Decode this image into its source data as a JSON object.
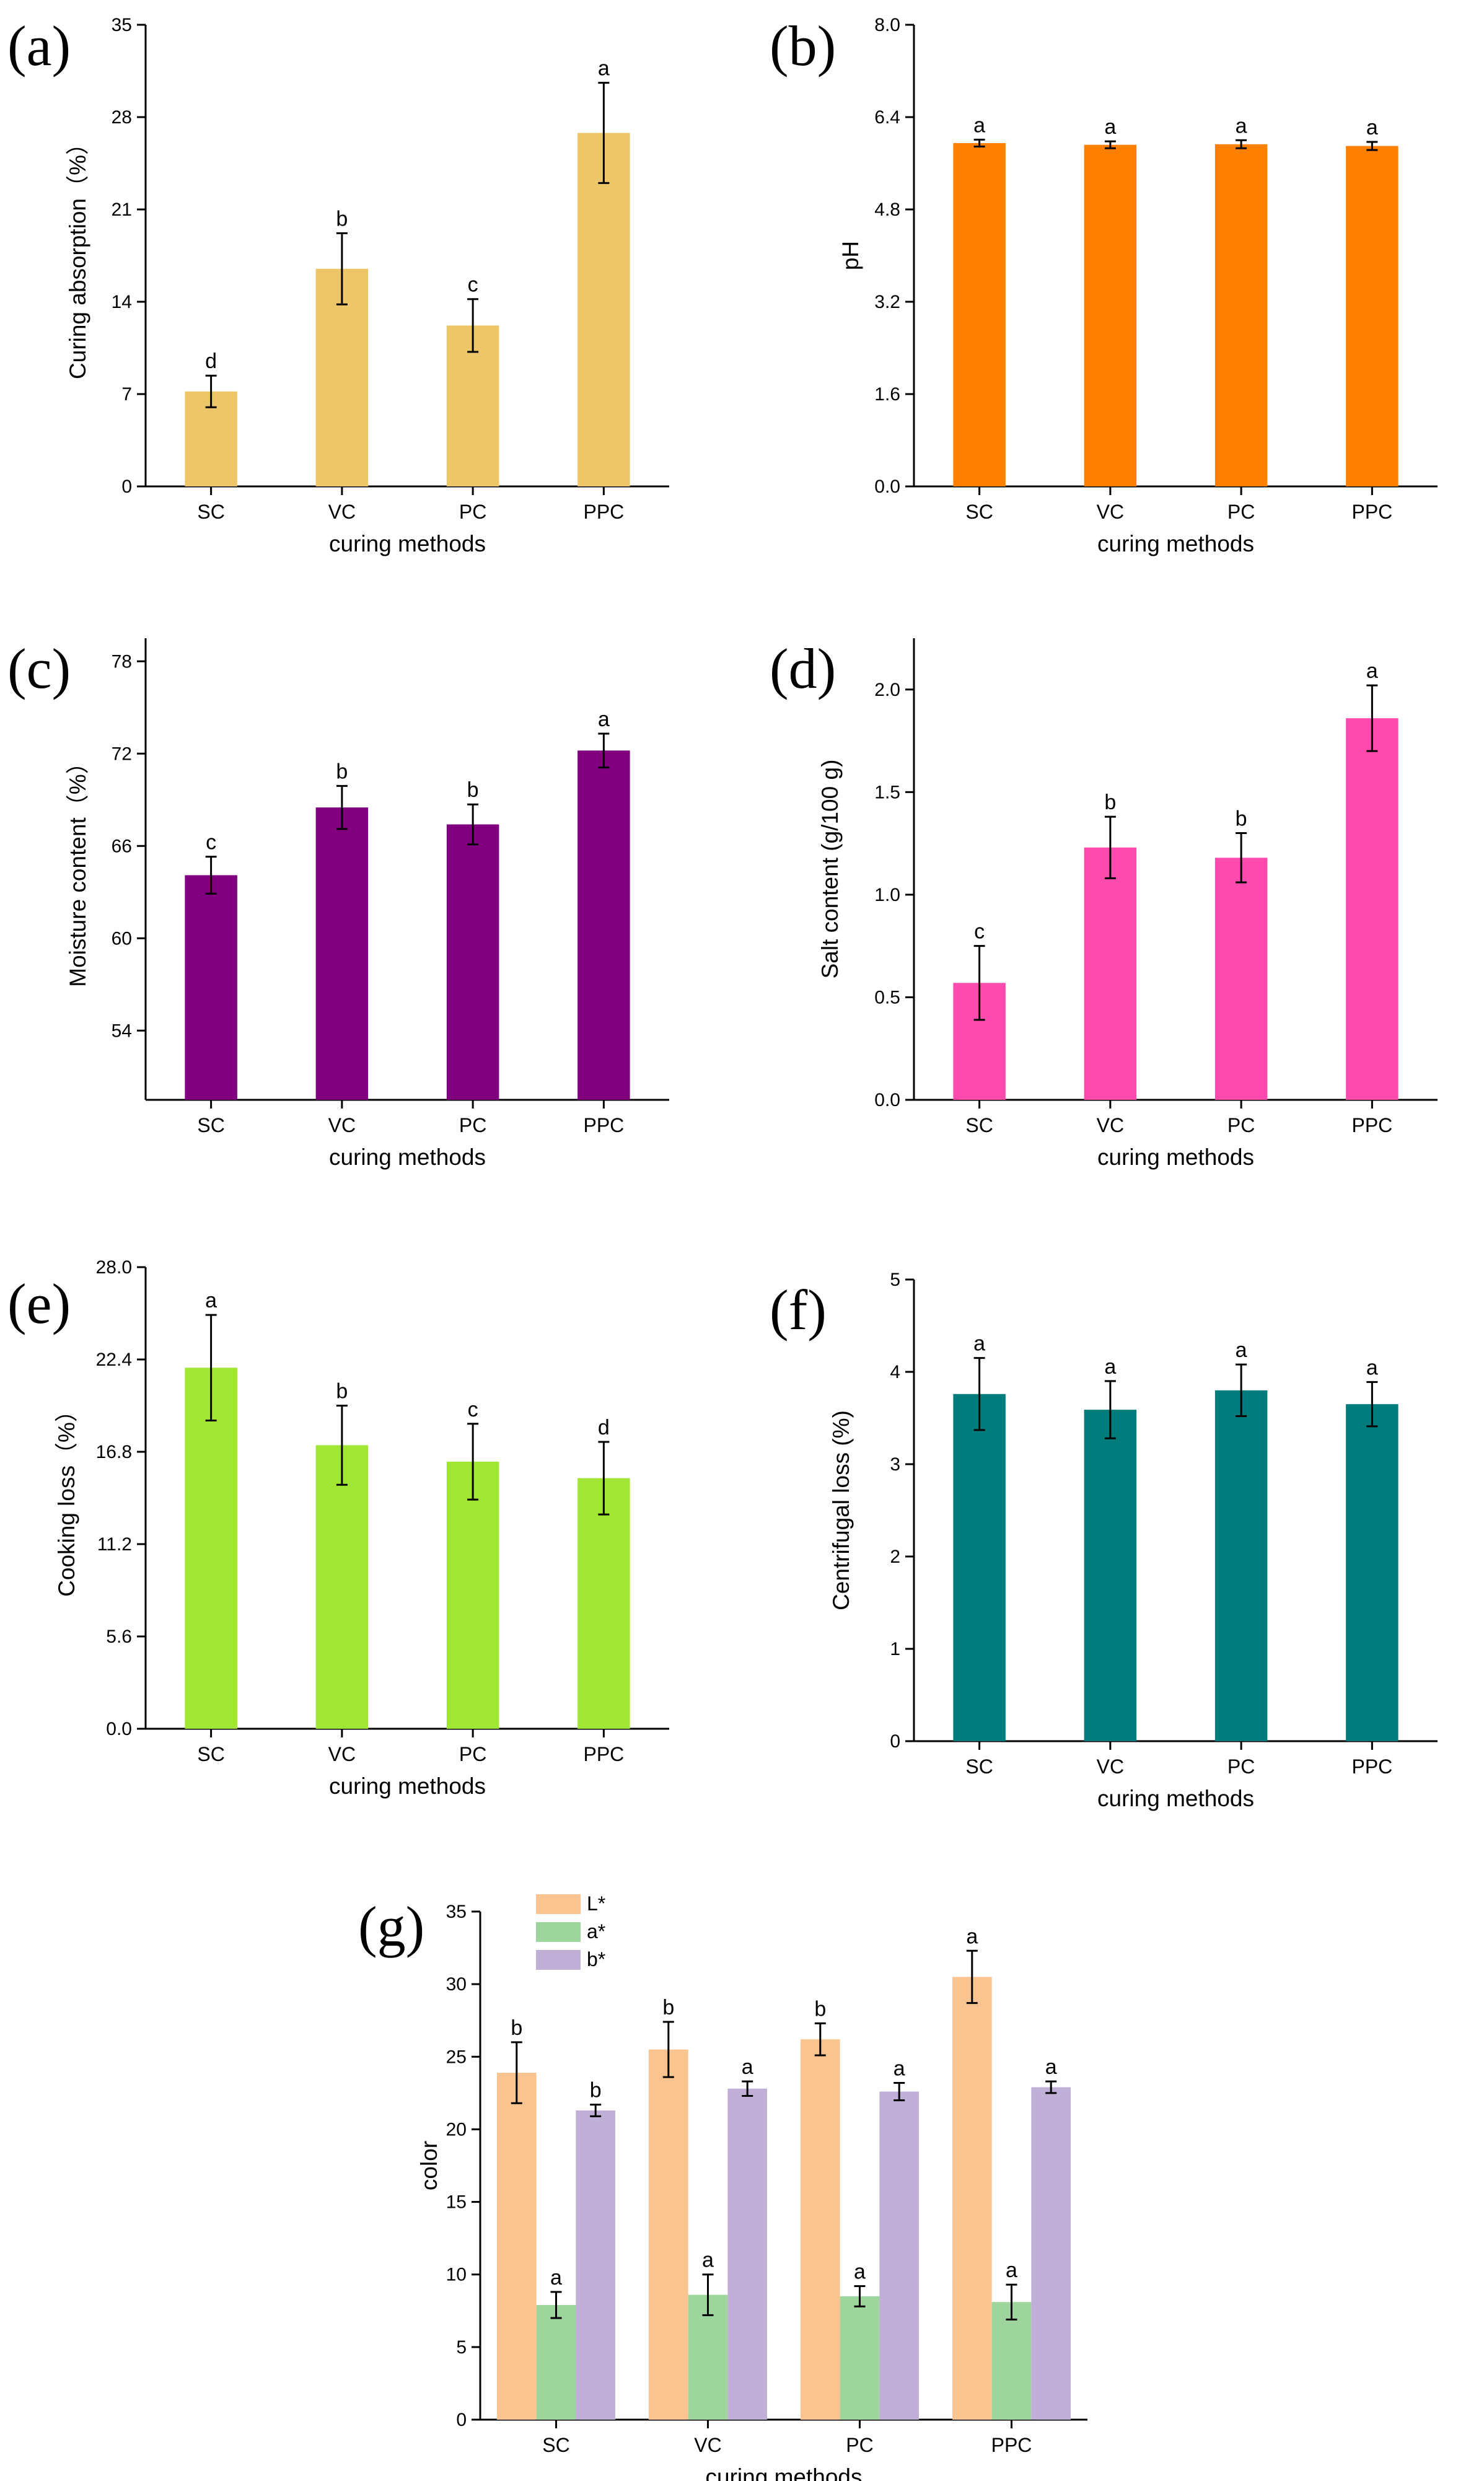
{
  "figure_title": "",
  "chart_data": [
    {
      "id": "a",
      "panel_label": "(a)",
      "type": "bar",
      "categories": [
        "SC",
        "VC",
        "PC",
        "PPC"
      ],
      "values": [
        7.2,
        16.5,
        12.2,
        26.8
      ],
      "errors": [
        1.2,
        2.7,
        2.0,
        3.8
      ],
      "letters": [
        "d",
        "b",
        "c",
        "a"
      ],
      "ylim": [
        0,
        35
      ],
      "yticks": [
        "0",
        "7",
        "14",
        "21",
        "28",
        "35"
      ],
      "ylabel": "Curing absorption（%）",
      "xlabel": "curing methods",
      "color": "#EDC66A"
    },
    {
      "id": "b",
      "panel_label": "(b)",
      "type": "bar",
      "categories": [
        "SC",
        "VC",
        "PC",
        "PPC"
      ],
      "values": [
        5.95,
        5.92,
        5.93,
        5.9
      ],
      "errors": [
        0.06,
        0.06,
        0.07,
        0.07
      ],
      "letters": [
        "a",
        "a",
        "a",
        "a"
      ],
      "ylim": [
        0,
        8.0
      ],
      "yticks": [
        "0.0",
        "1.6",
        "3.2",
        "4.8",
        "6.4",
        "8.0"
      ],
      "ylabel": "pH",
      "xlabel": "curing methods",
      "color": "#FF8000"
    },
    {
      "id": "c",
      "panel_label": "(c)",
      "type": "bar",
      "categories": [
        "SC",
        "VC",
        "PC",
        "PPC"
      ],
      "values": [
        64.1,
        68.5,
        67.4,
        72.2
      ],
      "errors": [
        1.2,
        1.4,
        1.3,
        1.1
      ],
      "letters": [
        "c",
        "b",
        "b",
        "a"
      ],
      "ylim": [
        49.5,
        79.5
      ],
      "yticks": [
        "54",
        "60",
        "66",
        "72",
        "78"
      ],
      "ytick_values": [
        54,
        60,
        66,
        72,
        78
      ],
      "ylabel": "Moisture content（%）",
      "xlabel": "curing methods",
      "color": "#800080"
    },
    {
      "id": "d",
      "panel_label": "(d)",
      "type": "bar",
      "categories": [
        "SC",
        "VC",
        "PC",
        "PPC"
      ],
      "values": [
        0.57,
        1.23,
        1.18,
        1.86
      ],
      "errors": [
        0.18,
        0.15,
        0.12,
        0.16
      ],
      "letters": [
        "c",
        "b",
        "b",
        "a"
      ],
      "ylim": [
        0,
        2.25
      ],
      "yticks": [
        "0.0",
        "0.5",
        "1.0",
        "1.5",
        "2.0"
      ],
      "ytick_values": [
        0,
        0.5,
        1.0,
        1.5,
        2.0
      ],
      "ylabel": "Salt content (g/100 g)",
      "xlabel": "curing methods",
      "color": "#FF4AAE"
    },
    {
      "id": "e",
      "panel_label": "(e)",
      "type": "bar",
      "categories": [
        "SC",
        "VC",
        "PC",
        "PPC"
      ],
      "values": [
        21.9,
        17.2,
        16.2,
        15.2
      ],
      "errors": [
        3.2,
        2.4,
        2.3,
        2.2
      ],
      "letters": [
        "a",
        "b",
        "c",
        "d"
      ],
      "ylim": [
        0,
        28.0
      ],
      "yticks": [
        "0.0",
        "5.6",
        "11.2",
        "16.8",
        "22.4",
        "28.0"
      ],
      "ylabel": "Cooking loss（%）",
      "xlabel": "curing methods",
      "color": "#A1E632"
    },
    {
      "id": "f",
      "panel_label": "(f)",
      "type": "bar",
      "categories": [
        "SC",
        "VC",
        "PC",
        "PPC"
      ],
      "values": [
        3.76,
        3.59,
        3.8,
        3.65
      ],
      "errors": [
        0.39,
        0.31,
        0.28,
        0.24
      ],
      "letters": [
        "a",
        "a",
        "a",
        "a"
      ],
      "ylim": [
        0,
        5
      ],
      "yticks": [
        "0",
        "1",
        "2",
        "3",
        "4",
        "5"
      ],
      "ylabel": "Centrifugal loss (%)",
      "xlabel": "curing methods",
      "color": "#007C7C"
    },
    {
      "id": "g",
      "panel_label": "(g)",
      "type": "bar",
      "categories": [
        "SC",
        "VC",
        "PC",
        "PPC"
      ],
      "series": [
        {
          "name": "L*",
          "values": [
            23.9,
            25.5,
            26.2,
            30.5
          ],
          "errors": [
            2.1,
            1.9,
            1.1,
            1.8
          ],
          "letters": [
            "b",
            "b",
            "b",
            "a"
          ],
          "color": "#FAC490"
        },
        {
          "name": "a*",
          "values": [
            7.9,
            8.6,
            8.5,
            8.1
          ],
          "errors": [
            0.9,
            1.4,
            0.7,
            1.2
          ],
          "letters": [
            "a",
            "a",
            "a",
            "a"
          ],
          "color": "#9ED59C"
        },
        {
          "name": "b*",
          "values": [
            21.3,
            22.8,
            22.6,
            22.9
          ],
          "errors": [
            0.4,
            0.5,
            0.6,
            0.4
          ],
          "letters": [
            "b",
            "a",
            "a",
            "a"
          ],
          "color": "#C0B0D8"
        }
      ],
      "ylim": [
        0,
        35
      ],
      "yticks": [
        "0",
        "5",
        "10",
        "15",
        "20",
        "25",
        "30",
        "35"
      ],
      "ylabel": "color",
      "xlabel": "curing methods",
      "legend": "top-left"
    }
  ]
}
